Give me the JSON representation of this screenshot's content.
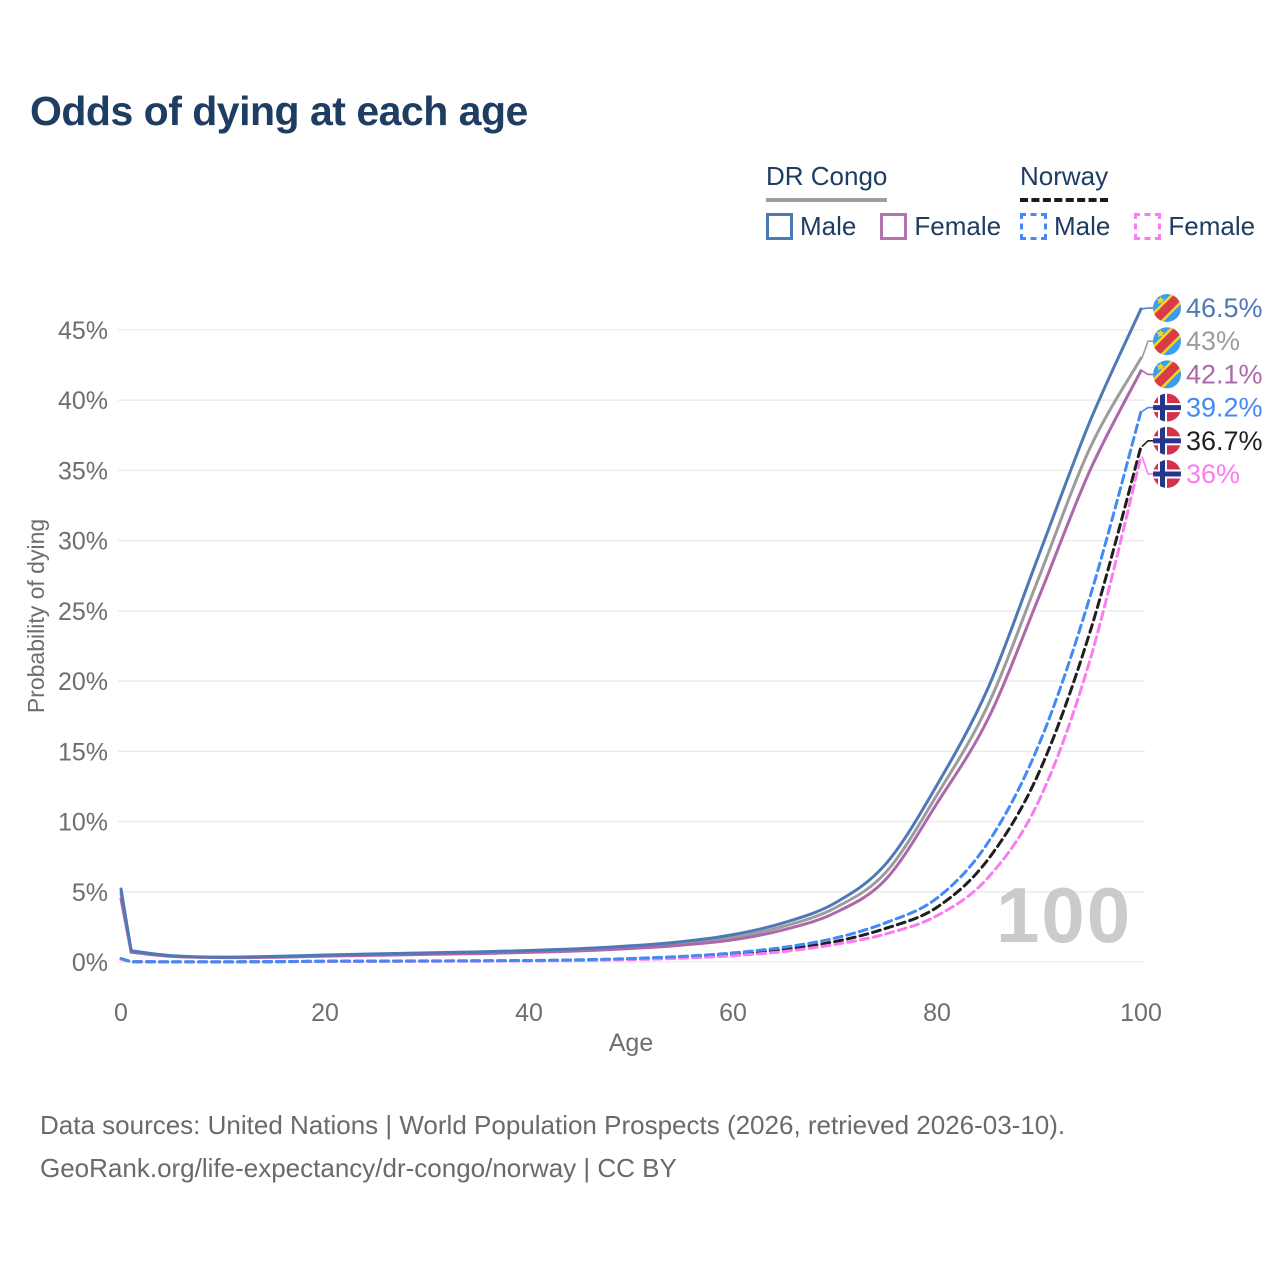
{
  "header": {
    "title": "Odds of dying at each age"
  },
  "legend": {
    "groups": [
      {
        "title": "DR Congo",
        "underline_color": "#9e9e9e",
        "underline_style": "solid",
        "items": [
          {
            "label": "Male",
            "color": "#4d79b6",
            "style": "solid"
          },
          {
            "label": "Female",
            "color": "#b573ae",
            "style": "solid"
          }
        ]
      },
      {
        "title": "Norway",
        "underline_color": "#1a1a1a",
        "underline_style": "dashed",
        "items": [
          {
            "label": "Male",
            "color": "#4489f4",
            "style": "dashed"
          },
          {
            "label": "Female",
            "color": "#fb7cf0",
            "style": "dashed"
          }
        ]
      }
    ]
  },
  "chart_data": {
    "type": "line",
    "title": "Odds of dying at each age",
    "xlabel": "Age",
    "ylabel": "Probability of dying",
    "units": "%",
    "xlim": [
      0,
      100
    ],
    "ylim": [
      0,
      47
    ],
    "x_ticks": [
      0,
      20,
      40,
      60,
      80,
      100
    ],
    "y_ticks": [
      0,
      5,
      10,
      15,
      20,
      25,
      30,
      35,
      40,
      45
    ],
    "grid": "horizontal",
    "age_counter": "100",
    "x": [
      0,
      1,
      5,
      10,
      15,
      20,
      25,
      30,
      35,
      40,
      45,
      50,
      55,
      60,
      65,
      70,
      75,
      80,
      85,
      90,
      95,
      100
    ],
    "series": [
      {
        "name": "DR Congo — Male",
        "flag": "cd",
        "color": "#4d79b6",
        "dash": "solid",
        "end_label": "46.5%",
        "values": [
          5.2,
          0.8,
          0.45,
          0.35,
          0.4,
          0.5,
          0.58,
          0.65,
          0.72,
          0.82,
          0.95,
          1.15,
          1.45,
          1.95,
          2.8,
          4.2,
          7.0,
          12.6,
          19.5,
          29.0,
          38.5,
          46.5
        ]
      },
      {
        "name": "DR Congo — Both sexes",
        "flag": "cd",
        "color": "#9c9c9c",
        "dash": "solid",
        "end_label": "43%",
        "values": [
          4.9,
          0.75,
          0.43,
          0.33,
          0.37,
          0.46,
          0.53,
          0.59,
          0.66,
          0.75,
          0.87,
          1.05,
          1.32,
          1.75,
          2.55,
          3.85,
          6.4,
          11.9,
          18.3,
          27.4,
          36.6,
          43.0
        ]
      },
      {
        "name": "DR Congo — Female",
        "flag": "cd",
        "color": "#ad68ab",
        "dash": "solid",
        "end_label": "42.1%",
        "values": [
          4.5,
          0.7,
          0.4,
          0.31,
          0.34,
          0.42,
          0.48,
          0.54,
          0.6,
          0.68,
          0.79,
          0.96,
          1.2,
          1.58,
          2.3,
          3.5,
          5.9,
          11.3,
          17.3,
          26.0,
          35.0,
          42.1
        ]
      },
      {
        "name": "Norway — Male",
        "flag": "no",
        "color": "#4489f4",
        "dash": "dashed",
        "end_label": "39.2%",
        "values": [
          0.25,
          0.02,
          0.01,
          0.01,
          0.03,
          0.06,
          0.07,
          0.08,
          0.09,
          0.11,
          0.16,
          0.25,
          0.4,
          0.65,
          1.05,
          1.7,
          2.8,
          4.55,
          8.5,
          15.5,
          26.0,
          39.2
        ]
      },
      {
        "name": "Norway — Both sexes",
        "flag": "no",
        "color": "#1f1f1f",
        "dash": "dashed",
        "end_label": "36.7%",
        "values": [
          0.22,
          0.02,
          0.01,
          0.01,
          0.02,
          0.05,
          0.055,
          0.065,
          0.075,
          0.095,
          0.14,
          0.21,
          0.34,
          0.55,
          0.9,
          1.45,
          2.4,
          3.9,
          7.3,
          13.5,
          23.5,
          36.7
        ]
      },
      {
        "name": "Norway — Female",
        "flag": "no",
        "color": "#fb7cf0",
        "dash": "dashed",
        "end_label": "36%",
        "values": [
          0.2,
          0.015,
          0.01,
          0.01,
          0.02,
          0.03,
          0.04,
          0.05,
          0.06,
          0.08,
          0.11,
          0.17,
          0.27,
          0.45,
          0.75,
          1.25,
          2.0,
          3.3,
          6.0,
          11.5,
          21.5,
          36.0
        ]
      }
    ],
    "flag_colors": {
      "cd": {
        "field": "#3b9df2",
        "band": "#f7d51d",
        "stripe": "#d63d49"
      },
      "no": {
        "field": "#d2334c",
        "fimbriation": "#ffffff",
        "cross": "#26348b"
      }
    }
  },
  "footer": {
    "line1": "Data sources: United Nations | World Population Prospects (2026, retrieved 2026-03-10).",
    "line2": "GeoRank.org/life-expectancy/dr-congo/norway | CC BY"
  }
}
